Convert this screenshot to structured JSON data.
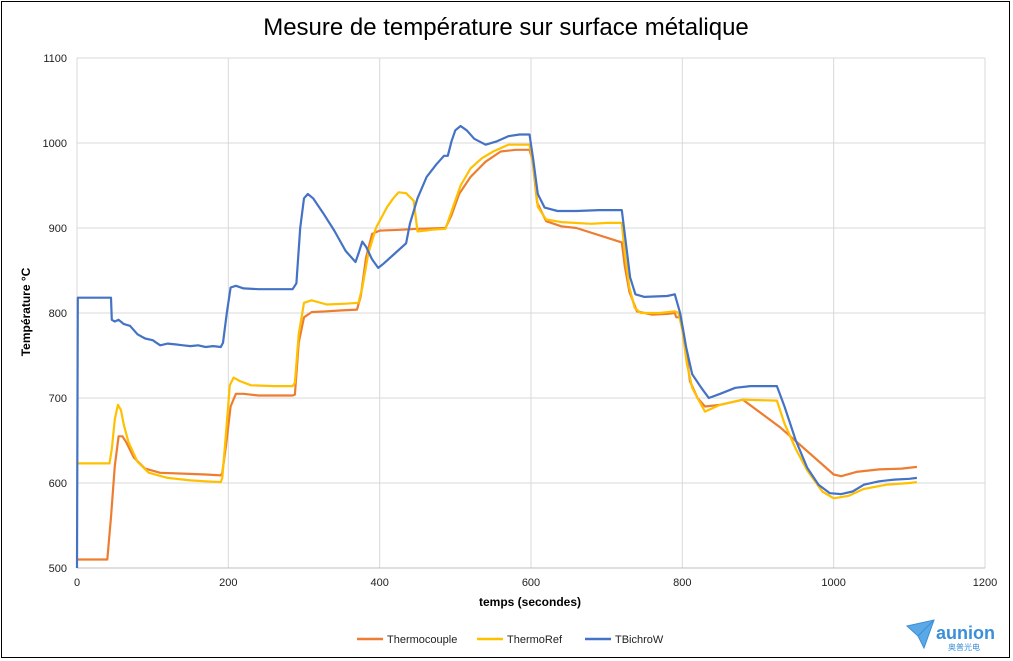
{
  "chart_data": {
    "type": "line",
    "title": "Mesure de température sur surface métalique",
    "xlabel": "temps (secondes)",
    "ylabel": "Température °C",
    "xlim": [
      0,
      1200
    ],
    "ylim": [
      500,
      1100
    ],
    "x_ticks": [
      0,
      200,
      400,
      600,
      800,
      1000,
      1200
    ],
    "y_ticks": [
      500,
      600,
      700,
      800,
      900,
      1000,
      1100
    ],
    "grid": true,
    "legend_position": "bottom",
    "series": [
      {
        "name": "Thermocouple",
        "color": "#ED7D31",
        "points": [
          [
            0,
            510
          ],
          [
            38,
            510
          ],
          [
            40,
            510
          ],
          [
            45,
            560
          ],
          [
            50,
            620
          ],
          [
            55,
            655
          ],
          [
            60,
            655
          ],
          [
            65,
            648
          ],
          [
            75,
            630
          ],
          [
            90,
            617
          ],
          [
            110,
            612
          ],
          [
            140,
            611
          ],
          [
            170,
            610
          ],
          [
            190,
            609
          ],
          [
            192,
            612
          ],
          [
            197,
            645
          ],
          [
            203,
            690
          ],
          [
            210,
            705
          ],
          [
            220,
            705
          ],
          [
            240,
            703
          ],
          [
            260,
            703
          ],
          [
            285,
            703
          ],
          [
            288,
            704
          ],
          [
            293,
            765
          ],
          [
            300,
            795
          ],
          [
            310,
            801
          ],
          [
            330,
            802
          ],
          [
            350,
            803
          ],
          [
            370,
            804
          ],
          [
            375,
            820
          ],
          [
            382,
            865
          ],
          [
            390,
            893
          ],
          [
            400,
            897
          ],
          [
            430,
            898
          ],
          [
            450,
            899
          ],
          [
            487,
            900
          ],
          [
            495,
            915
          ],
          [
            505,
            940
          ],
          [
            520,
            960
          ],
          [
            540,
            978
          ],
          [
            560,
            990
          ],
          [
            580,
            992
          ],
          [
            598,
            992
          ],
          [
            602,
            980
          ],
          [
            608,
            930
          ],
          [
            620,
            908
          ],
          [
            640,
            902
          ],
          [
            660,
            900
          ],
          [
            720,
            883
          ],
          [
            724,
            855
          ],
          [
            730,
            825
          ],
          [
            740,
            802
          ],
          [
            760,
            798
          ],
          [
            780,
            799
          ],
          [
            790,
            800
          ],
          [
            792,
            795
          ],
          [
            798,
            795
          ],
          [
            803,
            770
          ],
          [
            810,
            720
          ],
          [
            820,
            700
          ],
          [
            830,
            690
          ],
          [
            850,
            692
          ],
          [
            880,
            698
          ],
          [
            930,
            665
          ],
          [
            1000,
            610
          ],
          [
            1010,
            608
          ],
          [
            1030,
            613
          ],
          [
            1060,
            616
          ],
          [
            1090,
            617
          ],
          [
            1110,
            619
          ]
        ]
      },
      {
        "name": "ThermoRef",
        "color": "#FFC000",
        "points": [
          [
            0,
            623
          ],
          [
            43,
            623
          ],
          [
            46,
            640
          ],
          [
            50,
            675
          ],
          [
            54,
            692
          ],
          [
            58,
            686
          ],
          [
            62,
            668
          ],
          [
            68,
            648
          ],
          [
            80,
            625
          ],
          [
            95,
            612
          ],
          [
            120,
            606
          ],
          [
            150,
            603
          ],
          [
            170,
            602
          ],
          [
            190,
            601
          ],
          [
            192,
            606
          ],
          [
            197,
            660
          ],
          [
            202,
            715
          ],
          [
            207,
            724
          ],
          [
            215,
            720
          ],
          [
            230,
            715
          ],
          [
            260,
            714
          ],
          [
            285,
            714
          ],
          [
            288,
            718
          ],
          [
            293,
            775
          ],
          [
            300,
            812
          ],
          [
            310,
            815
          ],
          [
            330,
            810
          ],
          [
            355,
            811
          ],
          [
            372,
            812
          ],
          [
            377,
            830
          ],
          [
            385,
            870
          ],
          [
            395,
            900
          ],
          [
            410,
            925
          ],
          [
            418,
            935
          ],
          [
            425,
            942
          ],
          [
            435,
            941
          ],
          [
            445,
            932
          ],
          [
            450,
            896
          ],
          [
            460,
            897
          ],
          [
            470,
            898
          ],
          [
            487,
            899
          ],
          [
            497,
            925
          ],
          [
            507,
            950
          ],
          [
            520,
            970
          ],
          [
            535,
            982
          ],
          [
            550,
            990
          ],
          [
            570,
            998
          ],
          [
            598,
            998
          ],
          [
            603,
            975
          ],
          [
            609,
            925
          ],
          [
            620,
            910
          ],
          [
            640,
            907
          ],
          [
            680,
            905
          ],
          [
            700,
            906
          ],
          [
            720,
            906
          ],
          [
            724,
            870
          ],
          [
            730,
            830
          ],
          [
            737,
            806
          ],
          [
            745,
            800
          ],
          [
            770,
            800
          ],
          [
            790,
            802
          ],
          [
            795,
            800
          ],
          [
            800,
            780
          ],
          [
            806,
            740
          ],
          [
            813,
            712
          ],
          [
            820,
            700
          ],
          [
            830,
            684
          ],
          [
            850,
            692
          ],
          [
            880,
            698
          ],
          [
            925,
            697
          ],
          [
            935,
            670
          ],
          [
            950,
            640
          ],
          [
            965,
            615
          ],
          [
            985,
            590
          ],
          [
            1000,
            582
          ],
          [
            1020,
            585
          ],
          [
            1040,
            593
          ],
          [
            1070,
            598
          ],
          [
            1100,
            600
          ],
          [
            1110,
            601
          ]
        ]
      },
      {
        "name": "TBichroW",
        "color": "#4472C4",
        "points": [
          [
            0,
            500
          ],
          [
            1,
            818
          ],
          [
            45,
            818
          ],
          [
            46,
            792
          ],
          [
            50,
            790
          ],
          [
            55,
            792
          ],
          [
            62,
            787
          ],
          [
            70,
            785
          ],
          [
            80,
            775
          ],
          [
            90,
            770
          ],
          [
            100,
            768
          ],
          [
            110,
            762
          ],
          [
            120,
            764
          ],
          [
            130,
            763
          ],
          [
            140,
            762
          ],
          [
            150,
            761
          ],
          [
            160,
            762
          ],
          [
            170,
            760
          ],
          [
            180,
            761
          ],
          [
            190,
            760
          ],
          [
            193,
            765
          ],
          [
            198,
            800
          ],
          [
            203,
            830
          ],
          [
            210,
            832
          ],
          [
            220,
            829
          ],
          [
            240,
            828
          ],
          [
            260,
            828
          ],
          [
            285,
            828
          ],
          [
            290,
            835
          ],
          [
            295,
            900
          ],
          [
            300,
            935
          ],
          [
            305,
            940
          ],
          [
            312,
            935
          ],
          [
            325,
            918
          ],
          [
            340,
            897
          ],
          [
            355,
            873
          ],
          [
            368,
            860
          ],
          [
            372,
            870
          ],
          [
            377,
            884
          ],
          [
            382,
            878
          ],
          [
            390,
            863
          ],
          [
            398,
            853
          ],
          [
            405,
            858
          ],
          [
            420,
            870
          ],
          [
            435,
            882
          ],
          [
            440,
            905
          ],
          [
            450,
            935
          ],
          [
            462,
            960
          ],
          [
            475,
            975
          ],
          [
            485,
            985
          ],
          [
            490,
            985
          ],
          [
            495,
            1002
          ],
          [
            500,
            1015
          ],
          [
            507,
            1020
          ],
          [
            515,
            1015
          ],
          [
            525,
            1005
          ],
          [
            540,
            998
          ],
          [
            555,
            1002
          ],
          [
            570,
            1008
          ],
          [
            585,
            1010
          ],
          [
            598,
            1010
          ],
          [
            603,
            980
          ],
          [
            609,
            940
          ],
          [
            618,
            924
          ],
          [
            635,
            920
          ],
          [
            660,
            920
          ],
          [
            690,
            921
          ],
          [
            720,
            921
          ],
          [
            725,
            885
          ],
          [
            731,
            842
          ],
          [
            738,
            822
          ],
          [
            750,
            819
          ],
          [
            780,
            820
          ],
          [
            790,
            822
          ],
          [
            797,
            800
          ],
          [
            805,
            760
          ],
          [
            813,
            728
          ],
          [
            825,
            712
          ],
          [
            835,
            700
          ],
          [
            850,
            705
          ],
          [
            870,
            712
          ],
          [
            890,
            714
          ],
          [
            925,
            714
          ],
          [
            935,
            690
          ],
          [
            950,
            650
          ],
          [
            965,
            618
          ],
          [
            980,
            598
          ],
          [
            995,
            588
          ],
          [
            1010,
            587
          ],
          [
            1025,
            590
          ],
          [
            1040,
            598
          ],
          [
            1060,
            602
          ],
          [
            1080,
            604
          ],
          [
            1100,
            605
          ],
          [
            1110,
            606
          ]
        ]
      }
    ]
  },
  "logo": {
    "name": "aunion",
    "subtitle": "奥普光电"
  }
}
